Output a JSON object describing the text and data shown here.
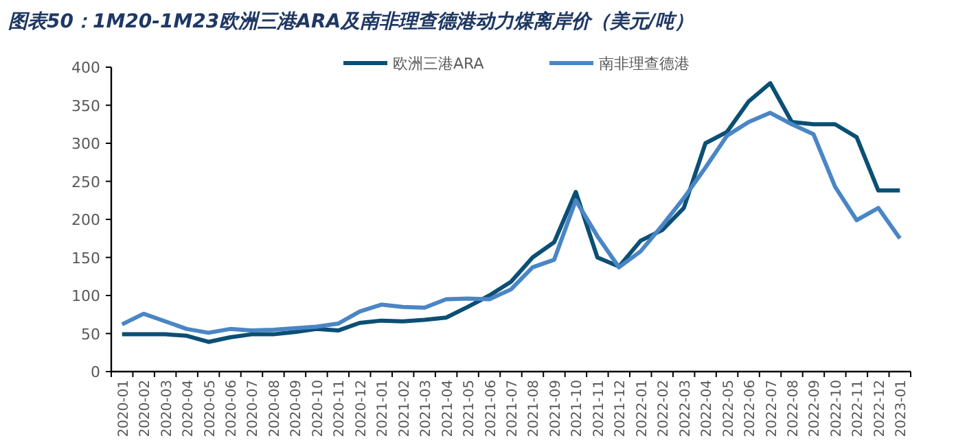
{
  "chart_data": {
    "type": "line",
    "title": "图表50：1M20-1M23欧洲三港ARA及南非理查德港动力煤离岸价（美元/吨）",
    "categories": [
      "2020-01",
      "2020-02",
      "2020-03",
      "2020-04",
      "2020-05",
      "2020-06",
      "2020-07",
      "2020-08",
      "2020-09",
      "2020-10",
      "2020-11",
      "2020-12",
      "2021-01",
      "2021-02",
      "2021-03",
      "2021-04",
      "2021-05",
      "2021-06",
      "2021-07",
      "2021-08",
      "2021-09",
      "2021-10",
      "2021-11",
      "2021-12",
      "2022-01",
      "2022-02",
      "2022-03",
      "2022-04",
      "2022-05",
      "2022-06",
      "2022-07",
      "2022-08",
      "2022-09",
      "2022-10",
      "2022-11",
      "2022-12",
      "2023-01"
    ],
    "series": [
      {
        "name": "欧洲三港ARA",
        "color": "#0b4f74",
        "values": [
          49,
          49,
          49,
          47,
          39,
          45,
          49,
          49,
          52,
          56,
          54,
          64,
          67,
          66,
          68,
          71,
          85,
          100,
          118,
          150,
          170,
          236,
          150,
          138,
          172,
          186,
          215,
          300,
          315,
          355,
          379,
          328,
          325,
          325,
          308,
          238,
          238
        ]
      },
      {
        "name": "南非理查德港",
        "color": "#4a86c5",
        "values": [
          62,
          76,
          66,
          56,
          51,
          56,
          54,
          55,
          57,
          59,
          63,
          79,
          88,
          85,
          84,
          95,
          96,
          95,
          108,
          137,
          147,
          225,
          178,
          137,
          158,
          192,
          228,
          268,
          310,
          328,
          340,
          325,
          312,
          243,
          199,
          215,
          175
        ]
      }
    ],
    "ylim": [
      0,
      400
    ],
    "yticks": [
      0,
      50,
      100,
      150,
      200,
      250,
      300,
      350,
      400
    ],
    "legend": "top right",
    "grid": false,
    "marker": "none",
    "line_style": "solid"
  }
}
